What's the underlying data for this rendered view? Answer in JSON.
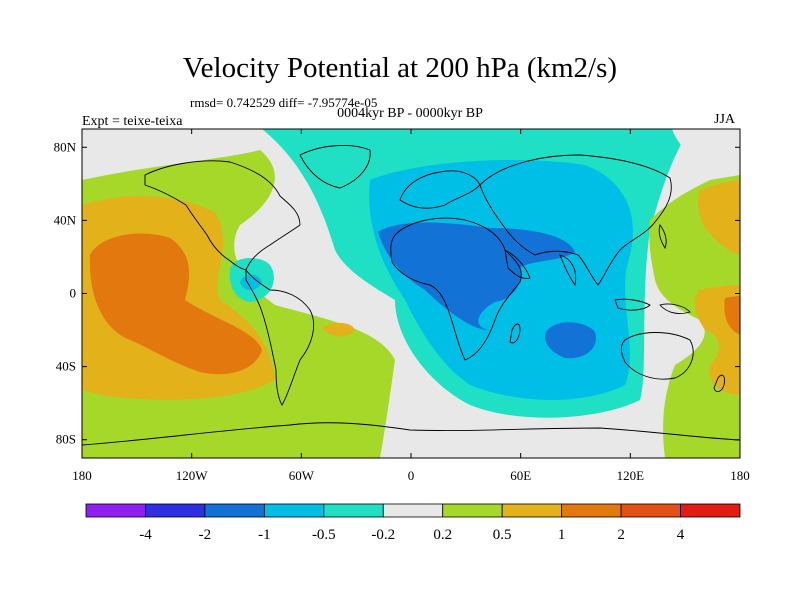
{
  "title": "Velocity Potential at 200 hPa (km2/s)",
  "stats_line": "rmsd= 0.742529 diff= -7.95774e-05",
  "subtitle": "0004kyr BP - 0000kyr BP",
  "experiment_label": "Expt = teixe-teixa",
  "season": "JJA",
  "lat_ticks": [
    "80N",
    "40N",
    "0",
    "40S",
    "80S"
  ],
  "lon_ticks": [
    "180",
    "120W",
    "60W",
    "0",
    "60E",
    "120E",
    "180"
  ],
  "colorbar": {
    "labels": [
      "-4",
      "-2",
      "-1",
      "-0.5",
      "-0.2",
      "0.2",
      "0.5",
      "1",
      "2",
      "4"
    ],
    "colors": [
      "#8f1ff0",
      "#2d2fe0",
      "#1372d6",
      "#00bfe6",
      "#1fe0c4",
      "#e8e8e8",
      "#a6d82a",
      "#e3b11a",
      "#e3780f",
      "#e44f14",
      "#e31b12"
    ]
  },
  "field_colors": {
    "neg_05_02": "#1fe0c4",
    "neg_1_05": "#00bfe6",
    "neg_2_1": "#1372d6",
    "near_zero": "#e8e8e8",
    "pos_02_05": "#a6d82a",
    "pos_05_1": "#e3b11a",
    "pos_1_2": "#e3780f"
  }
}
